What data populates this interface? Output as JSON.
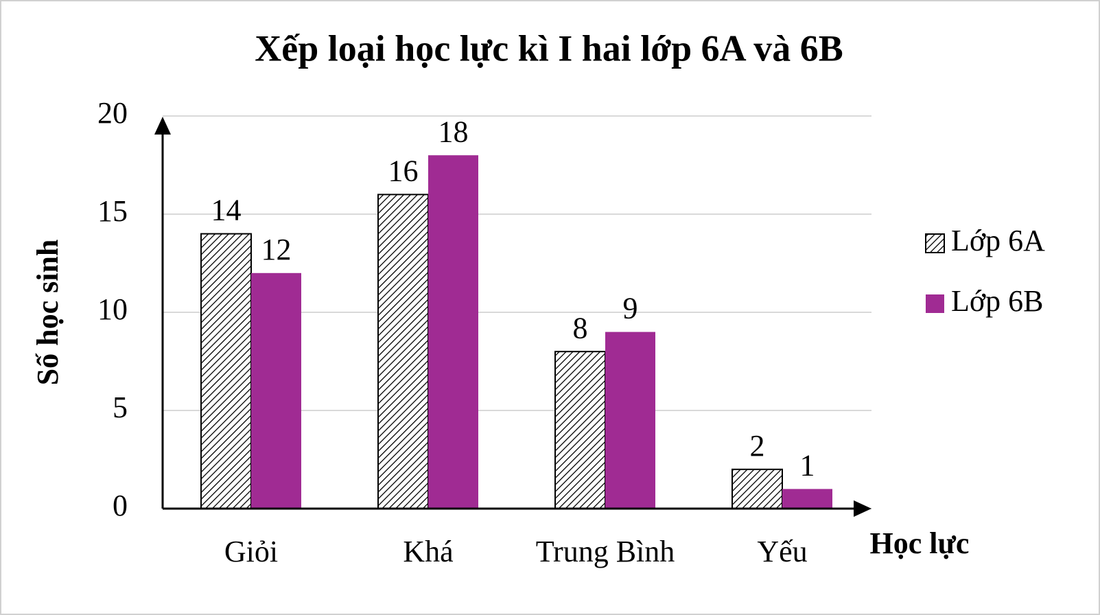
{
  "chart_data": {
    "type": "bar",
    "title": "Xếp loại học lực kì I hai lớp 6A và 6B",
    "x_label": "Học lực",
    "y_label": "Số học sinh",
    "categories": [
      "Giỏi",
      "Khá",
      "Trung Bình",
      "Yếu"
    ],
    "series": [
      {
        "name": "Lớp 6A",
        "color": "#000000",
        "hatch": true,
        "values": [
          14,
          16,
          8,
          2
        ]
      },
      {
        "name": "Lớp 6B",
        "color": "#a02b93",
        "values": [
          12,
          18,
          9,
          1
        ]
      }
    ],
    "ylim": [
      0,
      20
    ],
    "yticks": [
      0,
      5,
      10,
      15,
      20
    ],
    "grid": true,
    "legend": "right"
  }
}
